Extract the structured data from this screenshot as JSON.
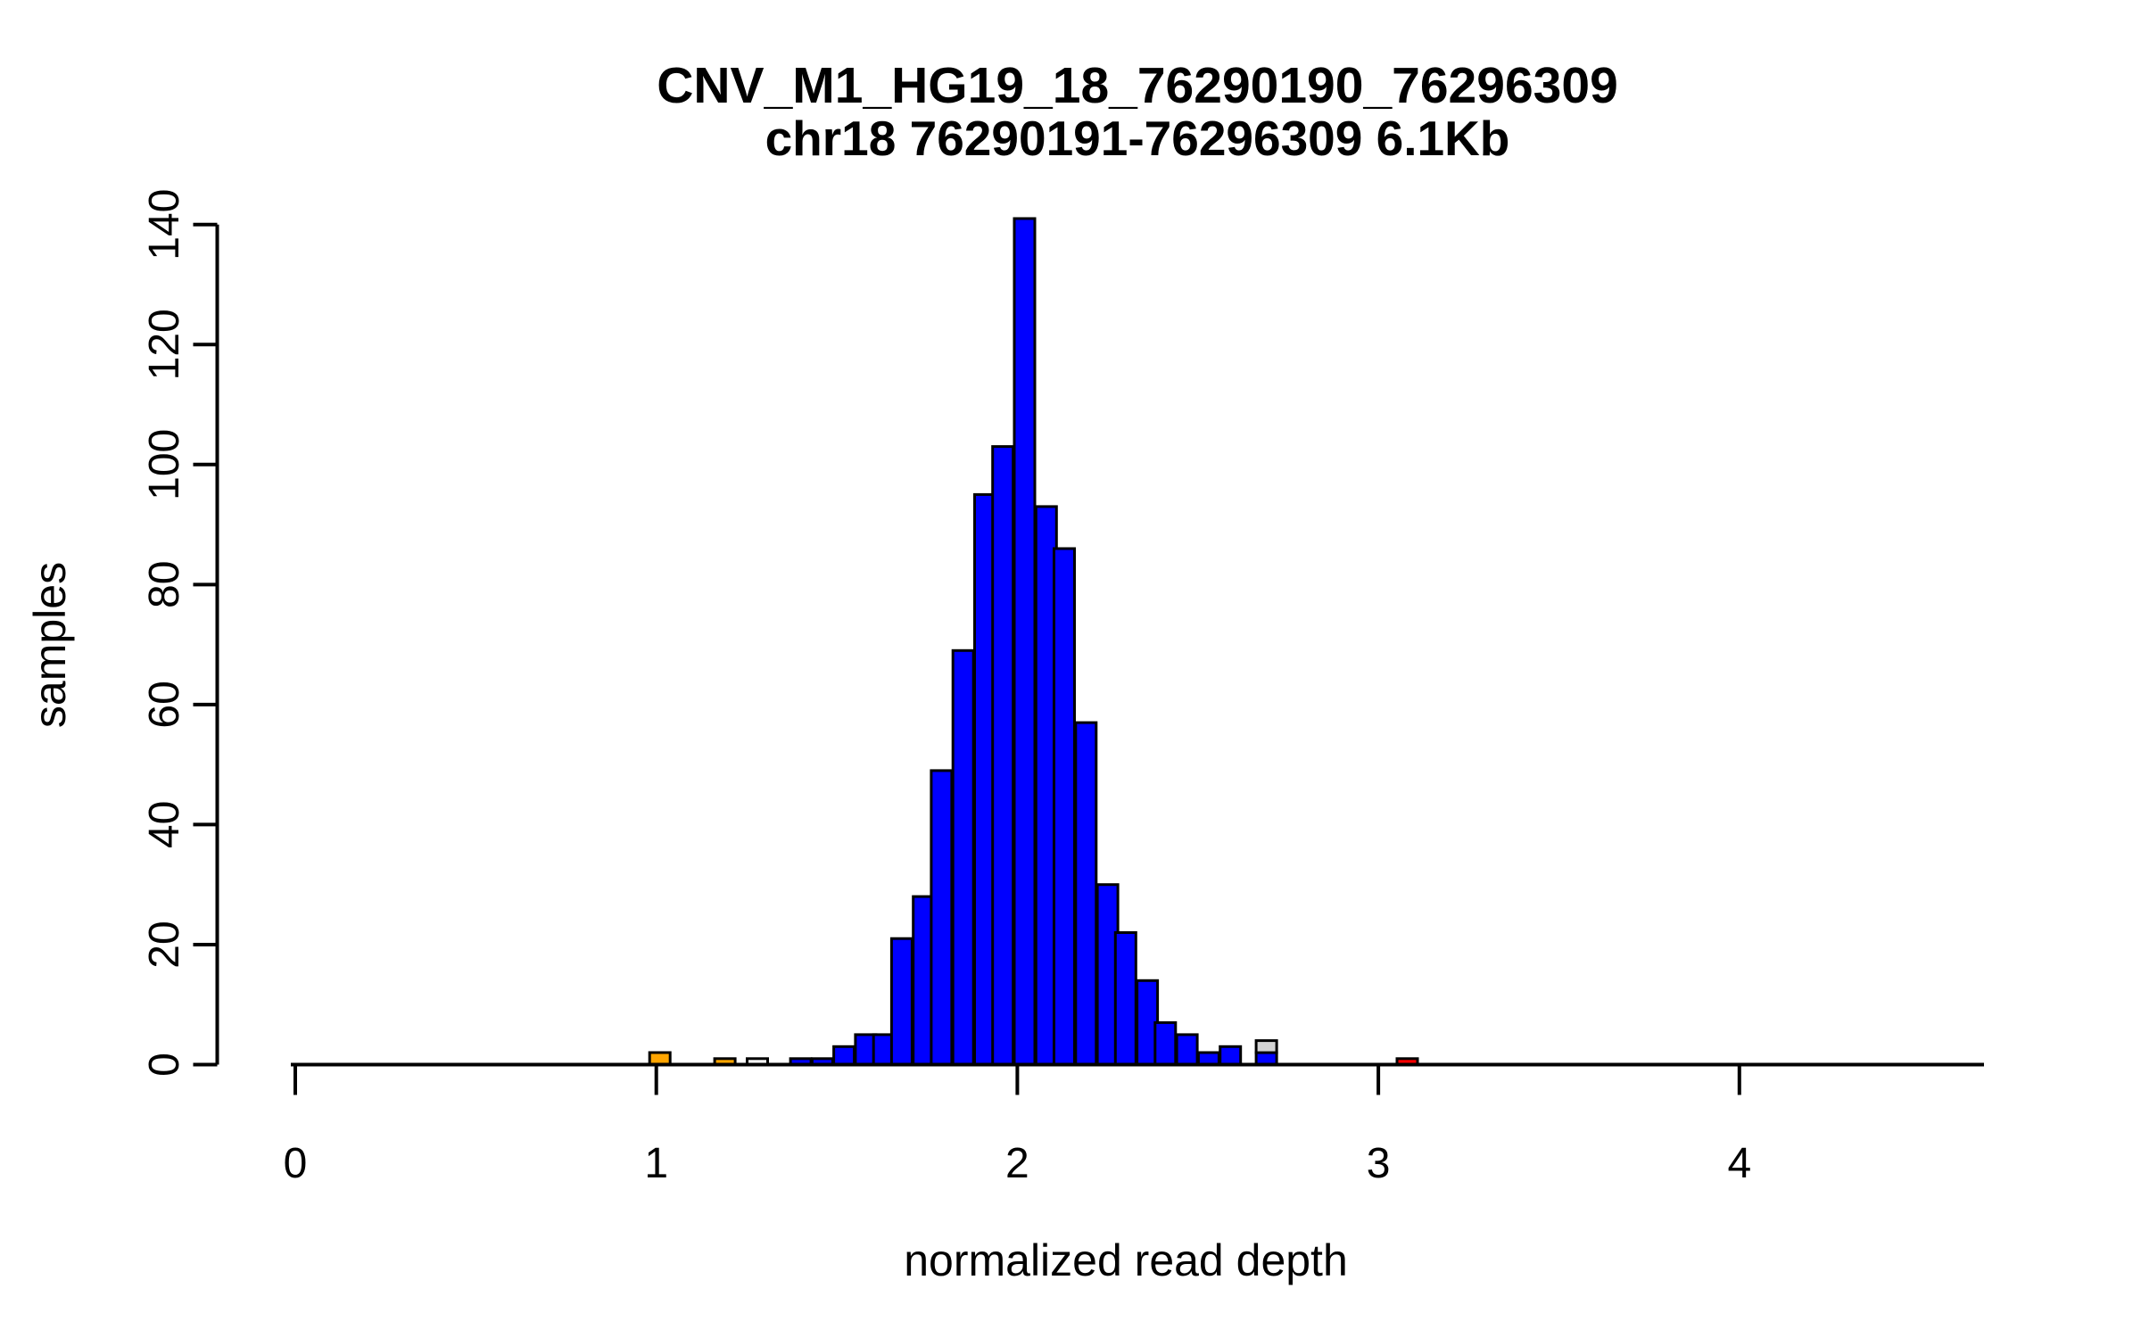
{
  "chart_data": {
    "type": "bar",
    "chart_kind": "histogram",
    "title": "CNV_M1_HG19_18_76290190_76296309",
    "subtitle": "chr18 76290191-76296309 6.1Kb",
    "xlabel": "normalized read depth",
    "ylabel": "samples",
    "x_ticks": [
      "0",
      "1",
      "2",
      "3",
      "4"
    ],
    "x_tick_values": [
      0,
      1,
      2,
      3,
      4
    ],
    "y_ticks": [
      "0",
      "20",
      "40",
      "60",
      "80",
      "100",
      "120",
      "140"
    ],
    "y_tick_values": [
      0,
      20,
      40,
      60,
      80,
      100,
      120,
      140
    ],
    "xlim": [
      -0.012,
      4.68
    ],
    "ylim": [
      0,
      140
    ],
    "grid": false,
    "legend": null,
    "bin_width": 0.057,
    "colors": {
      "blue": "#0000FF",
      "orange": "#FFA500",
      "white": "#FFFFFF",
      "gray": "#D3D3D3",
      "red": "#FF0000",
      "stroke": "#000000",
      "axis": "#000000",
      "background": "#FFFFFF"
    },
    "bins": [
      {
        "x": 1.01,
        "segments": [
          {
            "color": "orange",
            "count": 2
          }
        ]
      },
      {
        "x": 1.19,
        "segments": [
          {
            "color": "orange",
            "count": 1
          }
        ]
      },
      {
        "x": 1.28,
        "segments": [
          {
            "color": "white",
            "count": 1
          }
        ]
      },
      {
        "x": 1.4,
        "segments": [
          {
            "color": "blue",
            "count": 1
          }
        ]
      },
      {
        "x": 1.46,
        "segments": [
          {
            "color": "blue",
            "count": 1
          }
        ]
      },
      {
        "x": 1.52,
        "segments": [
          {
            "color": "blue",
            "count": 3
          }
        ]
      },
      {
        "x": 1.58,
        "segments": [
          {
            "color": "blue",
            "count": 5
          }
        ]
      },
      {
        "x": 1.63,
        "segments": [
          {
            "color": "blue",
            "count": 5
          }
        ]
      },
      {
        "x": 1.68,
        "segments": [
          {
            "color": "blue",
            "count": 21
          }
        ]
      },
      {
        "x": 1.74,
        "segments": [
          {
            "color": "blue",
            "count": 28
          }
        ]
      },
      {
        "x": 1.79,
        "segments": [
          {
            "color": "blue",
            "count": 49
          }
        ]
      },
      {
        "x": 1.85,
        "segments": [
          {
            "color": "blue",
            "count": 69
          }
        ]
      },
      {
        "x": 1.91,
        "segments": [
          {
            "color": "blue",
            "count": 95
          }
        ]
      },
      {
        "x": 1.96,
        "segments": [
          {
            "color": "blue",
            "count": 103
          }
        ]
      },
      {
        "x": 2.02,
        "segments": [
          {
            "color": "blue",
            "count": 141
          }
        ]
      },
      {
        "x": 2.08,
        "segments": [
          {
            "color": "blue",
            "count": 93
          }
        ]
      },
      {
        "x": 2.13,
        "segments": [
          {
            "color": "blue",
            "count": 86
          }
        ]
      },
      {
        "x": 2.19,
        "segments": [
          {
            "color": "blue",
            "count": 57
          }
        ]
      },
      {
        "x": 2.25,
        "segments": [
          {
            "color": "blue",
            "count": 30
          }
        ]
      },
      {
        "x": 2.3,
        "segments": [
          {
            "color": "blue",
            "count": 22
          }
        ]
      },
      {
        "x": 2.36,
        "segments": [
          {
            "color": "blue",
            "count": 14
          }
        ]
      },
      {
        "x": 2.41,
        "segments": [
          {
            "color": "blue",
            "count": 7
          }
        ]
      },
      {
        "x": 2.47,
        "segments": [
          {
            "color": "blue",
            "count": 5
          }
        ]
      },
      {
        "x": 2.53,
        "segments": [
          {
            "color": "blue",
            "count": 2
          }
        ]
      },
      {
        "x": 2.59,
        "segments": [
          {
            "color": "blue",
            "count": 3
          }
        ]
      },
      {
        "x": 2.69,
        "segments": [
          {
            "color": "blue",
            "count": 2
          },
          {
            "color": "gray",
            "count": 2
          }
        ]
      },
      {
        "x": 3.08,
        "segments": [
          {
            "color": "red",
            "count": 1
          }
        ]
      }
    ]
  }
}
